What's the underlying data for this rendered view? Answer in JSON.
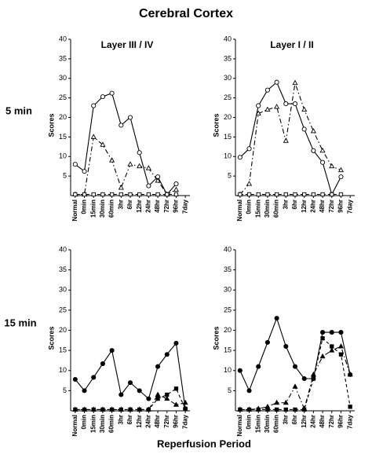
{
  "title": "Cerebral Cortex",
  "row_labels": [
    "5 min",
    "15 min"
  ],
  "x_label": "Reperfusion Period",
  "chart_data": [
    {
      "type": "line",
      "title": "Layer III / IV",
      "y_label": "Scores",
      "marker_fill": "open",
      "categories": [
        "Normal",
        "0min",
        "15min",
        "30min",
        "60min",
        "3hr",
        "6hr",
        "12hr",
        "24hr",
        "48hr",
        "72hr",
        "96hr",
        "7day"
      ],
      "ylim": [
        0,
        40
      ],
      "yticks": [
        5,
        10,
        15,
        20,
        25,
        30,
        35,
        40
      ],
      "series": [
        {
          "color": "#000000",
          "dash": "solid",
          "marker": "circle",
          "values": [
            8,
            6.2,
            23,
            25.3,
            26.2,
            18,
            20,
            11,
            2.5,
            4.8,
            0.3,
            3,
            null
          ]
        },
        {
          "color": "#000000",
          "dash": "dashdot",
          "marker": "triangle",
          "values": [
            0.3,
            0.3,
            15,
            13,
            9,
            2,
            8,
            7.5,
            7,
            3.8,
            0.3,
            1.5,
            null
          ]
        },
        {
          "color": "#000000",
          "dash": "dashed",
          "marker": "square",
          "values": [
            0.3,
            0.3,
            0.3,
            0.3,
            0.3,
            0.3,
            0.3,
            0.3,
            0.3,
            0.3,
            0.3,
            0.3,
            null
          ]
        }
      ]
    },
    {
      "type": "line",
      "title": "Layer I / II",
      "y_label": "Scores",
      "marker_fill": "open",
      "categories": [
        "Normal",
        "0min",
        "15min",
        "30min",
        "60min",
        "3hr",
        "6hr",
        "12hr",
        "24hr",
        "48hr",
        "72hr",
        "96hr",
        "7day"
      ],
      "ylim": [
        0,
        40
      ],
      "yticks": [
        5,
        10,
        15,
        20,
        25,
        30,
        35,
        40
      ],
      "series": [
        {
          "color": "#000000",
          "dash": "solid",
          "marker": "circle",
          "values": [
            9.8,
            12,
            23,
            27,
            29,
            23.5,
            23.5,
            17,
            11.5,
            8.5,
            0.3,
            4.8,
            null
          ]
        },
        {
          "color": "#000000",
          "dash": "dashdot",
          "marker": "triangle",
          "values": [
            0.3,
            3,
            21,
            22,
            22.7,
            14,
            28.8,
            22,
            16.5,
            11.5,
            7.5,
            6.5,
            null
          ]
        },
        {
          "color": "#000000",
          "dash": "dashed",
          "marker": "square",
          "values": [
            0.3,
            0.3,
            0.3,
            0.3,
            0.3,
            0.3,
            0.3,
            0.3,
            0.3,
            0.3,
            0.3,
            0.3,
            null
          ]
        }
      ]
    },
    {
      "type": "line",
      "y_label": "Scores",
      "marker_fill": "filled",
      "categories": [
        "Normal",
        "0min",
        "15min",
        "30min",
        "60min",
        "3hr",
        "6hr",
        "12hr",
        "24hr",
        "48hr",
        "72hr",
        "96hr",
        "7day"
      ],
      "ylim": [
        0,
        40
      ],
      "yticks": [
        5,
        10,
        15,
        20,
        25,
        30,
        35,
        40
      ],
      "series": [
        {
          "color": "#000000",
          "dash": "solid",
          "marker": "circle",
          "values": [
            7.8,
            5,
            8.3,
            11.7,
            15,
            4,
            7,
            5,
            3,
            11,
            14,
            16.8,
            0.5
          ]
        },
        {
          "color": "#000000",
          "dash": "dashdot",
          "marker": "triangle",
          "values": [
            0.3,
            0.3,
            0.3,
            0.3,
            0.3,
            0.3,
            0.3,
            0.3,
            0.3,
            4,
            3,
            1.5,
            2
          ]
        },
        {
          "color": "#000000",
          "dash": "dashed",
          "marker": "square",
          "values": [
            0.3,
            0.3,
            0.3,
            0.3,
            0.3,
            0.3,
            0.3,
            0.3,
            0.3,
            3,
            4,
            5.5,
            0.5
          ]
        }
      ]
    },
    {
      "type": "line",
      "y_label": "Scores",
      "marker_fill": "filled",
      "categories": [
        "Normal",
        "0min",
        "15min",
        "30min",
        "60min",
        "3hr",
        "6hr",
        "12hr",
        "24hr",
        "48hr",
        "72hr",
        "96hr",
        "7day"
      ],
      "ylim": [
        0,
        40
      ],
      "yticks": [
        5,
        10,
        15,
        20,
        25,
        30,
        35,
        40
      ],
      "series": [
        {
          "color": "#000000",
          "dash": "solid",
          "marker": "circle",
          "values": [
            10,
            5,
            11,
            17,
            23,
            16,
            11,
            8,
            8,
            19.5,
            19.5,
            19.5,
            9
          ]
        },
        {
          "color": "#000000",
          "dash": "dashdot",
          "marker": "triangle",
          "values": [
            0.3,
            0.3,
            0.5,
            1,
            2,
            2,
            6,
            0.5,
            9,
            13.5,
            15,
            16,
            9
          ]
        },
        {
          "color": "#000000",
          "dash": "dashed",
          "marker": "square",
          "values": [
            0.3,
            0.3,
            0.3,
            0.3,
            0.3,
            0.3,
            0.3,
            0.3,
            8,
            18,
            16,
            14,
            1
          ]
        }
      ]
    }
  ]
}
